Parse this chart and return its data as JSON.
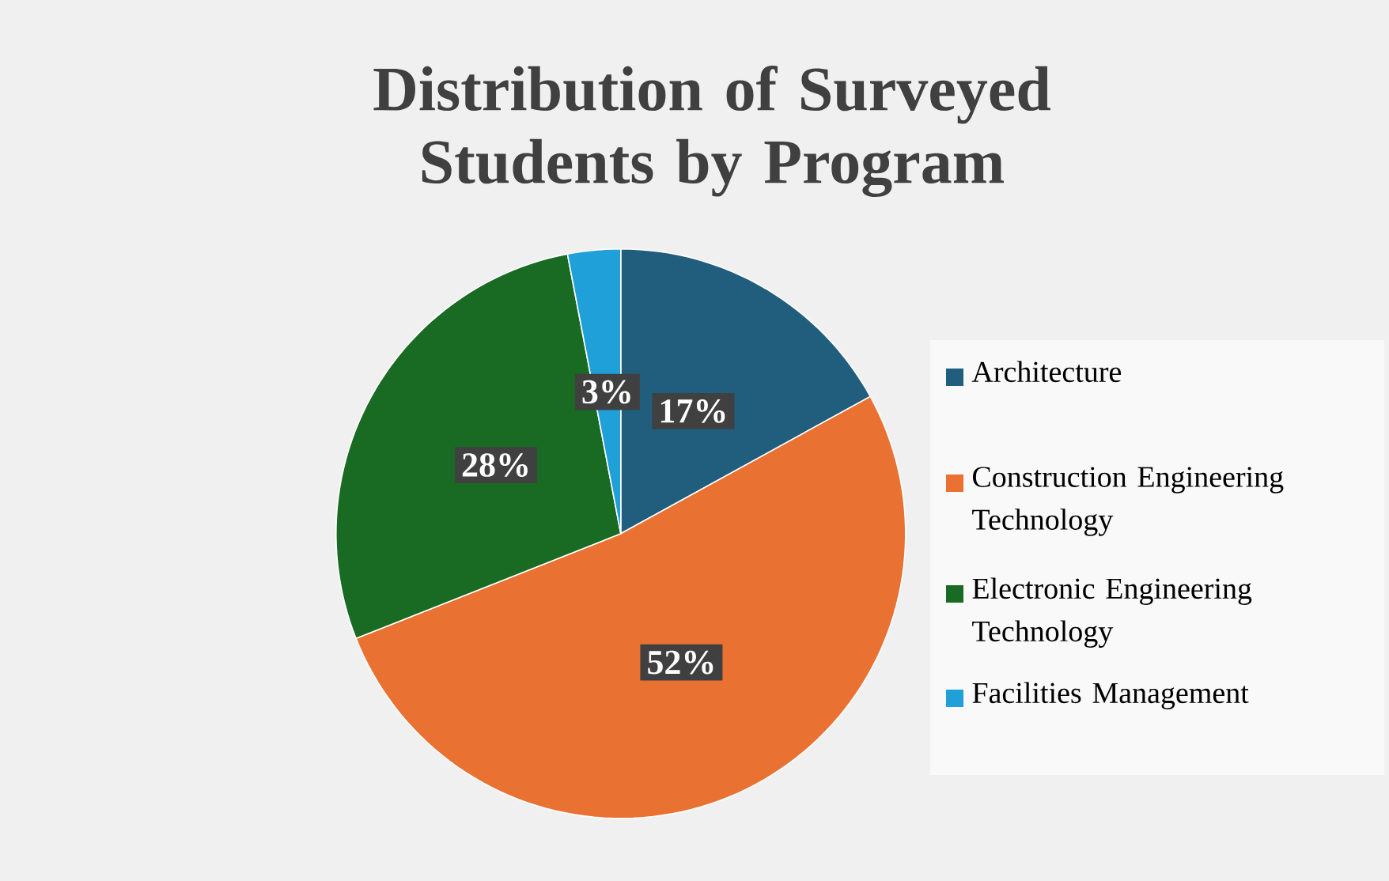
{
  "chart_data": {
    "type": "pie",
    "title": "Distribution of Surveyed Students by Program",
    "categories": [
      "Architecture",
      "Construction Engineering Technology",
      "Electronic Engineering Technology",
      "Facilities Management"
    ],
    "values": [
      17,
      52,
      28,
      3
    ],
    "colors": [
      "#215e7d",
      "#e97132",
      "#196b24",
      "#1fa0d8"
    ],
    "value_labels": [
      "17%",
      "52%",
      "28%",
      "3%"
    ],
    "legend": "right"
  }
}
